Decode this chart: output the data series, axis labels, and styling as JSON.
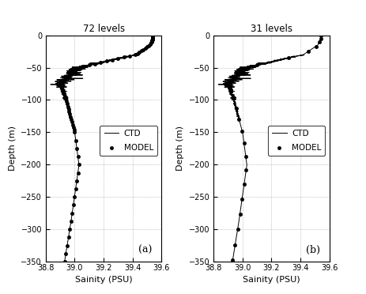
{
  "title_a": "72 levels",
  "title_b": "31 levels",
  "xlabel": "Sainity (PSU)",
  "ylabel": "Depth (m)",
  "xlim": [
    38.8,
    39.6
  ],
  "ylim": [
    -350,
    0
  ],
  "xticks": [
    38.8,
    39.0,
    39.2,
    39.4,
    39.6
  ],
  "yticks": [
    0,
    -50,
    -100,
    -150,
    -200,
    -250,
    -300,
    -350
  ],
  "panel_a_label": "(a)",
  "panel_b_label": "(b)",
  "legend_ctd": "CTD",
  "legend_model": "MODEL",
  "line_color": "#000000",
  "dot_color": "#000000",
  "background_color": "#ffffff",
  "grid_color": "#999999",
  "ctd_noise_seed": 42
}
